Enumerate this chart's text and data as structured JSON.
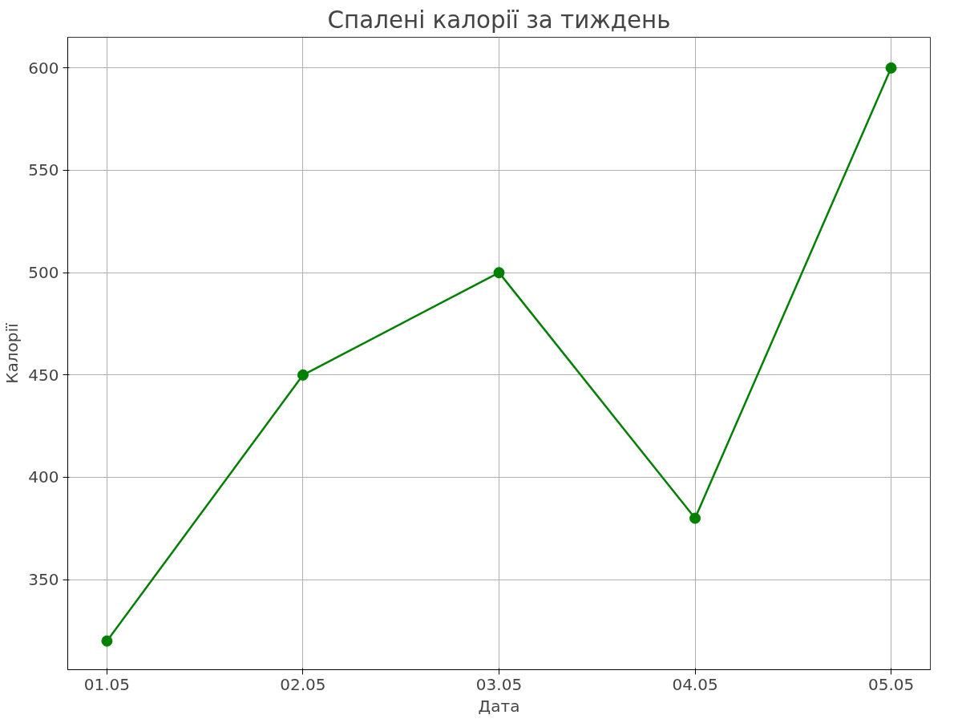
{
  "chart_data": {
    "type": "line",
    "title": "Спалені калорії за тиждень",
    "xlabel": "Дата",
    "ylabel": "Калорії",
    "categories": [
      "01.05",
      "02.05",
      "03.05",
      "04.05",
      "05.05"
    ],
    "series": [
      {
        "color": "#008000",
        "values": [
          320,
          450,
          500,
          380,
          600
        ]
      }
    ],
    "ylim": [
      306,
      615
    ],
    "yticks": [
      350,
      400,
      450,
      500,
      550,
      600
    ],
    "grid": true,
    "marker": "circle",
    "line_style": "solid"
  }
}
